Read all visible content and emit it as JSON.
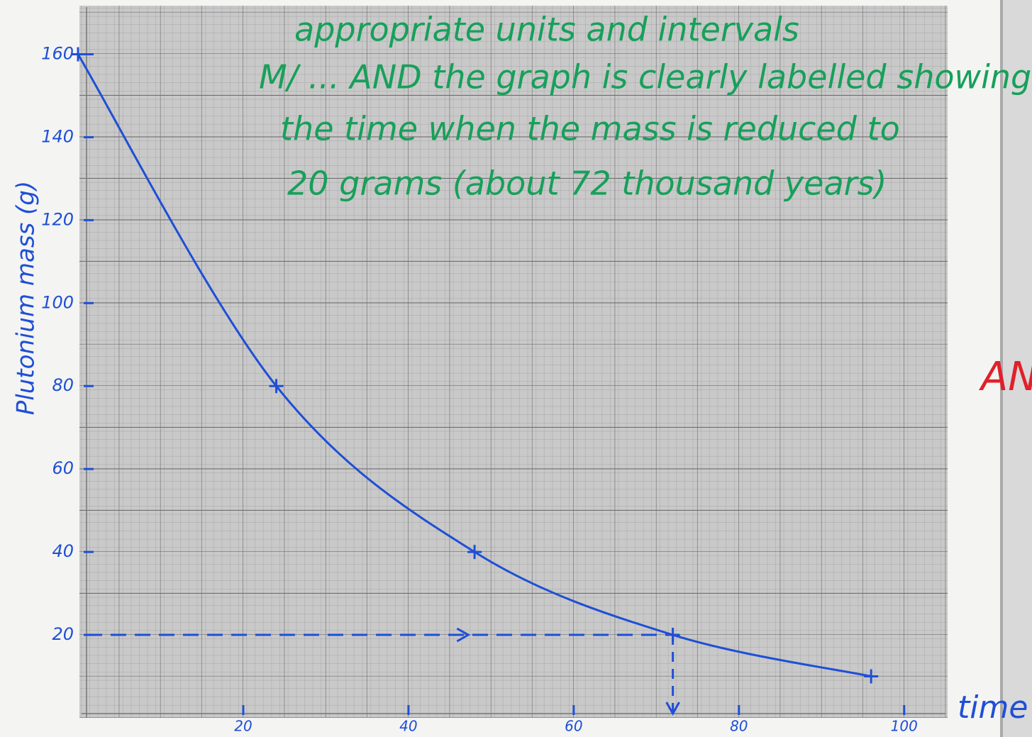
{
  "chart_data": {
    "type": "line",
    "y_label": "Plutonium mass (g)",
    "x_label": "time",
    "annotations": [
      "appropriate units and intervals",
      "M/ ... AND the graph is clearly labelled showing",
      "the time when the mass is reduced to",
      "20 grams (about 72 thousand years)"
    ],
    "margin_mark": "AN",
    "x": [
      0,
      24,
      48,
      72,
      96
    ],
    "series": [
      {
        "color": "#1e4fd6",
        "values": [
          160,
          80,
          40,
          20,
          10
        ]
      }
    ],
    "reading": {
      "x": 72,
      "y": 20
    },
    "xlim": [
      0,
      105
    ],
    "ylim": [
      0,
      170
    ],
    "xticks": [
      20,
      40,
      60,
      80,
      100
    ],
    "yticks": [
      20,
      40,
      60,
      80,
      100,
      120,
      140,
      160
    ],
    "grid": true
  }
}
